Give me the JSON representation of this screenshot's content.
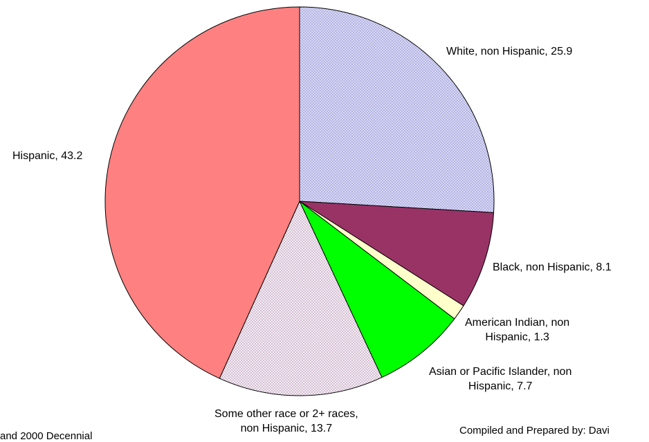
{
  "chart_data": {
    "type": "pie",
    "slices": [
      {
        "label": "White, non Hispanic",
        "value": 25.9,
        "color": "#c8c8f0",
        "label_lines": [
          "White, non Hispanic, 25.9"
        ]
      },
      {
        "label": "Black, non Hispanic",
        "value": 8.1,
        "color": "#993366",
        "label_lines": [
          "Black, non Hispanic, 8.1"
        ]
      },
      {
        "label": "American Indian, non Hispanic",
        "value": 1.3,
        "color": "#ffffcc",
        "label_lines": [
          "American Indian, non",
          "Hispanic, 1.3"
        ]
      },
      {
        "label": "Asian or Pacific Islander, non Hispanic",
        "value": 7.7,
        "color": "#00ff00",
        "label_lines": [
          "Asian or Pacific Islander, non",
          "Hispanic, 7.7"
        ]
      },
      {
        "label": "Some other race or 2+ races, non Hispanic",
        "value": 13.7,
        "color": "#ede0ec",
        "label_lines": [
          "Some other race or 2+ races,",
          "non Hispanic, 13.7"
        ]
      },
      {
        "label": "Hispanic",
        "value": 43.2,
        "color": "#ff8080",
        "label_lines": [
          "Hispanic, 43.2"
        ]
      }
    ],
    "start_angle_deg": 0,
    "direction": "clockwise"
  },
  "notes": {
    "left": "and 2000 Decennial",
    "right": "Compiled and Prepared by: Davi"
  }
}
